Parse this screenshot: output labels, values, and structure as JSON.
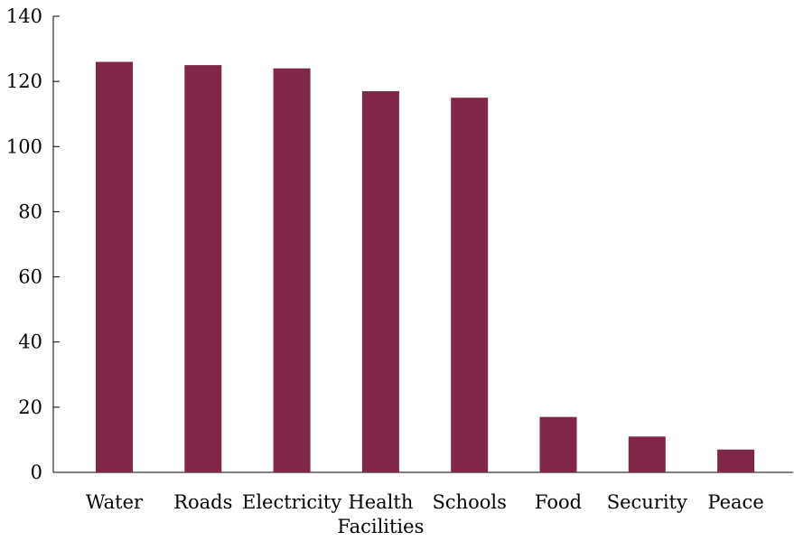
{
  "chart_data": {
    "type": "bar",
    "title": "",
    "xlabel": "",
    "ylabel": "",
    "categories": [
      [
        "Water"
      ],
      [
        "Roads"
      ],
      [
        "Electricity"
      ],
      [
        "Health",
        "Facilities"
      ],
      [
        "Schools"
      ],
      [
        "Food"
      ],
      [
        "Security"
      ],
      [
        "Peace"
      ]
    ],
    "values": [
      126,
      125,
      124,
      117,
      115,
      17,
      11,
      7
    ],
    "ylim": [
      0,
      140
    ],
    "yticks": [
      0,
      20,
      40,
      60,
      80,
      100,
      120,
      140
    ],
    "grid": false,
    "bar_color": "#7f2649"
  }
}
